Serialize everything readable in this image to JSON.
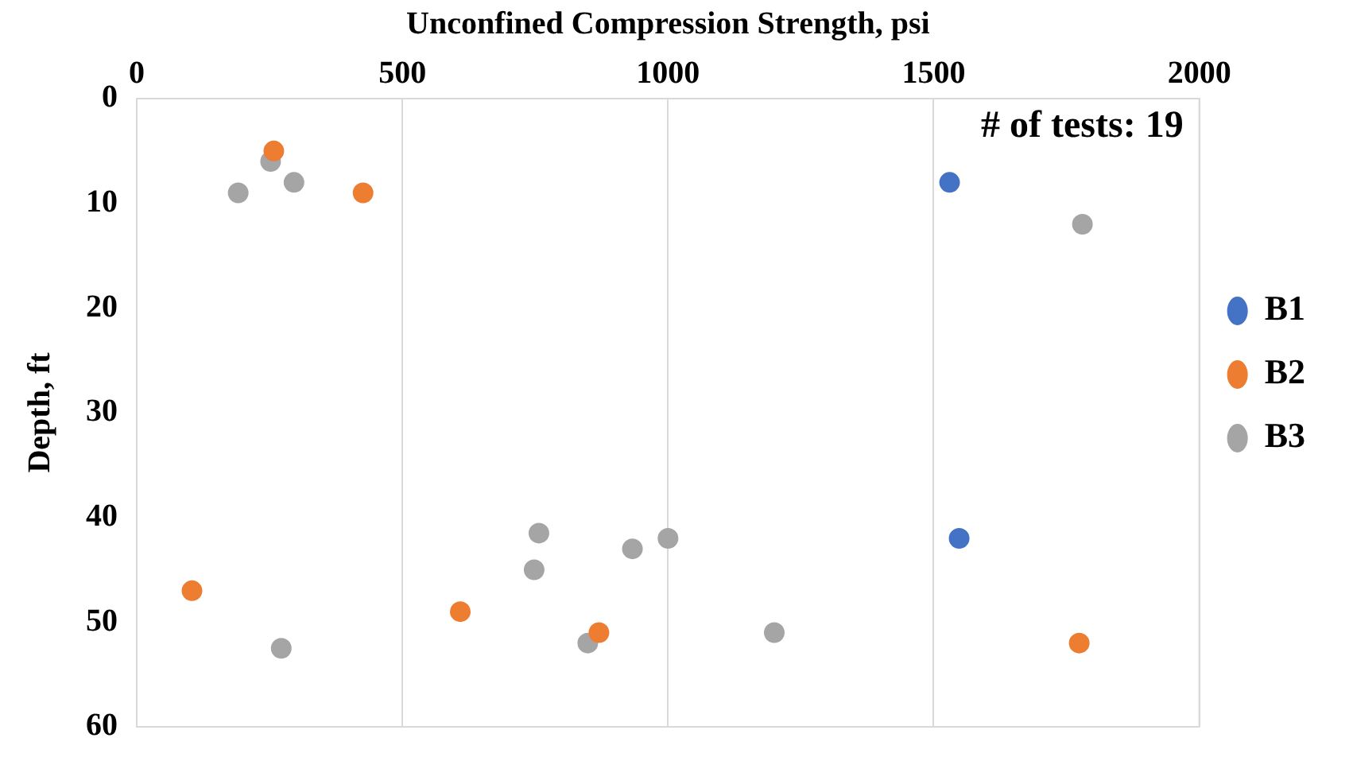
{
  "chart_data": {
    "type": "scatter",
    "xlabel": "Unconfined Compression Strength, psi",
    "ylabel": "Depth, ft",
    "xlim": [
      0,
      2000
    ],
    "xticks": [
      0,
      500,
      1000,
      1500,
      2000
    ],
    "ylim": [
      60,
      0
    ],
    "yticks": [
      0,
      10,
      20,
      30,
      40,
      50,
      60
    ],
    "grid": "x",
    "legend": "right",
    "marker": "circle",
    "annotations": [
      "# of tests: 19"
    ],
    "series": [
      {
        "name": "B1",
        "color": "#4472c4",
        "x": [
          1530,
          1548
        ],
        "values": [
          8,
          42
        ]
      },
      {
        "name": "B2",
        "color": "#ed7d31",
        "x": [
          258,
          426,
          104,
          609,
          870,
          1774
        ],
        "values": [
          5,
          9,
          47,
          49,
          51,
          52
        ]
      },
      {
        "name": "B3",
        "color": "#a5a5a5",
        "x": [
          252,
          296,
          191,
          1780,
          757,
          933,
          1000,
          748,
          272,
          849,
          1200
        ],
        "values": [
          6,
          8,
          9,
          12,
          41.5,
          43,
          42,
          45,
          52.5,
          52,
          51
        ]
      }
    ]
  }
}
